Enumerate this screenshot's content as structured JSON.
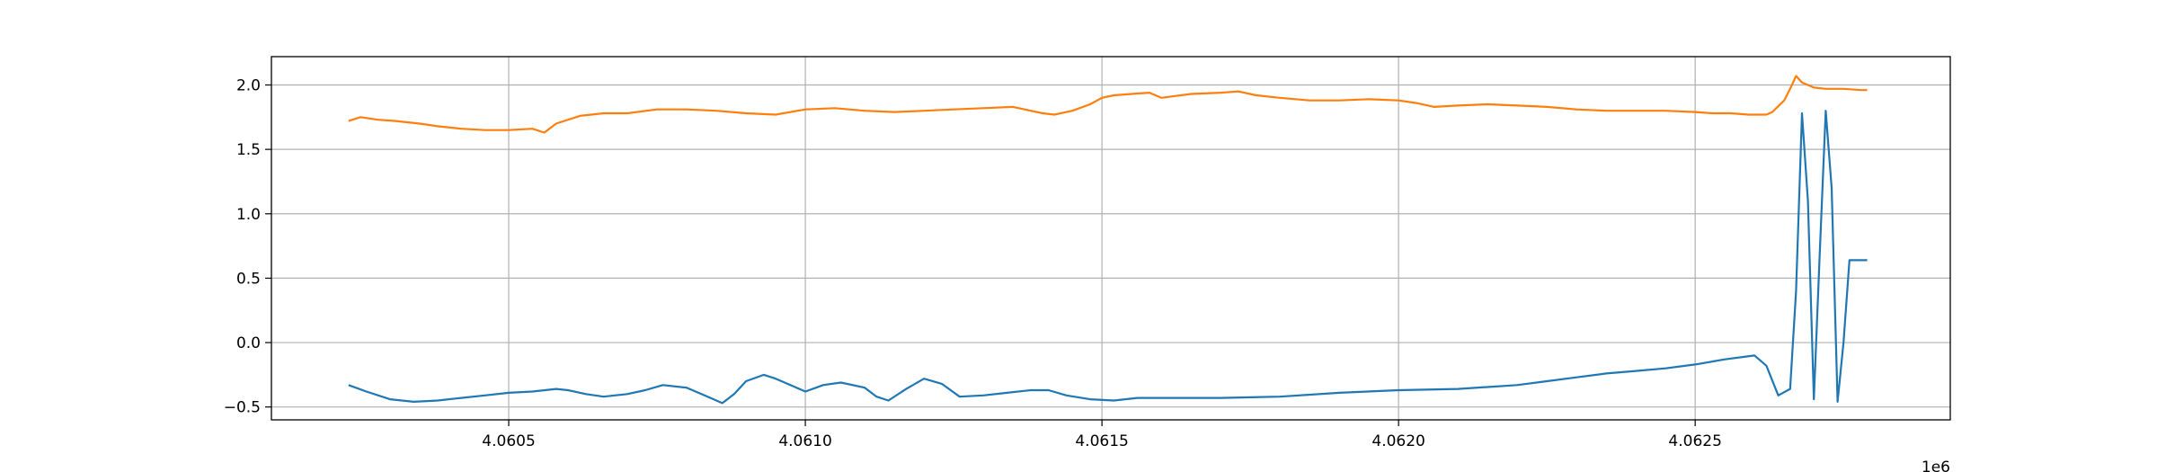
{
  "chart_data": {
    "type": "line",
    "x_offset_label": "1e6",
    "xlim": [
      4.0601,
      4.06293
    ],
    "ylim": [
      -0.6,
      2.22
    ],
    "grid": true,
    "x_ticks": [
      {
        "value": 4.0605,
        "label": "4.0605"
      },
      {
        "value": 4.061,
        "label": "4.0610"
      },
      {
        "value": 4.0615,
        "label": "4.0615"
      },
      {
        "value": 4.062,
        "label": "4.0620"
      },
      {
        "value": 4.0625,
        "label": "4.0625"
      }
    ],
    "y_ticks": [
      {
        "value": 2.0,
        "label": "2.0"
      },
      {
        "value": 1.5,
        "label": "1.5"
      },
      {
        "value": 1.0,
        "label": "1.0"
      },
      {
        "value": 0.5,
        "label": "0.5"
      },
      {
        "value": 0.0,
        "label": "0.0"
      },
      {
        "value": -0.5,
        "label": "−0.5"
      }
    ],
    "series": [
      {
        "color": "#ff7f0e",
        "x": [
          4.06023,
          4.06025,
          4.06028,
          4.06031,
          4.06035,
          4.06038,
          4.06042,
          4.06046,
          4.0605,
          4.06054,
          4.06056,
          4.06058,
          4.06062,
          4.06066,
          4.0607,
          4.06075,
          4.0608,
          4.06085,
          4.0609,
          4.06095,
          4.061,
          4.06105,
          4.0611,
          4.06115,
          4.0612,
          4.06125,
          4.0613,
          4.06135,
          4.0614,
          4.06142,
          4.06145,
          4.06148,
          4.0615,
          4.06152,
          4.06155,
          4.06158,
          4.0616,
          4.06165,
          4.0617,
          4.06173,
          4.06176,
          4.0618,
          4.06185,
          4.0619,
          4.06195,
          4.062,
          4.06203,
          4.06206,
          4.0621,
          4.06215,
          4.0622,
          4.06225,
          4.0623,
          4.06235,
          4.0624,
          4.06245,
          4.0625,
          4.06253,
          4.06256,
          4.06259,
          4.06262,
          4.06263,
          4.06265,
          4.06266,
          4.06267,
          4.06268,
          4.0627,
          4.06272,
          4.06275,
          4.06278,
          4.06279
        ],
        "y": [
          1.72,
          1.75,
          1.73,
          1.72,
          1.7,
          1.68,
          1.66,
          1.65,
          1.65,
          1.66,
          1.63,
          1.7,
          1.76,
          1.78,
          1.78,
          1.81,
          1.81,
          1.8,
          1.78,
          1.77,
          1.81,
          1.82,
          1.8,
          1.79,
          1.8,
          1.81,
          1.82,
          1.83,
          1.78,
          1.77,
          1.8,
          1.85,
          1.9,
          1.92,
          1.93,
          1.94,
          1.9,
          1.93,
          1.94,
          1.95,
          1.92,
          1.9,
          1.88,
          1.88,
          1.89,
          1.88,
          1.86,
          1.83,
          1.84,
          1.85,
          1.84,
          1.83,
          1.81,
          1.8,
          1.8,
          1.8,
          1.79,
          1.78,
          1.78,
          1.77,
          1.77,
          1.79,
          1.88,
          1.97,
          2.07,
          2.02,
          1.98,
          1.97,
          1.97,
          1.96,
          1.96
        ]
      },
      {
        "color": "#1f77b4",
        "x": [
          4.06023,
          4.06026,
          4.0603,
          4.06034,
          4.06038,
          4.06042,
          4.06046,
          4.0605,
          4.06054,
          4.06058,
          4.0606,
          4.06063,
          4.06066,
          4.0607,
          4.06073,
          4.06076,
          4.0608,
          4.06083,
          4.06086,
          4.06088,
          4.0609,
          4.06093,
          4.06095,
          4.06098,
          4.061,
          4.06103,
          4.06106,
          4.0611,
          4.06112,
          4.06114,
          4.06117,
          4.0612,
          4.06123,
          4.06126,
          4.0613,
          4.06134,
          4.06138,
          4.06141,
          4.06144,
          4.06148,
          4.06152,
          4.06156,
          4.0616,
          4.0617,
          4.0618,
          4.0619,
          4.062,
          4.0621,
          4.0622,
          4.06225,
          4.0623,
          4.06235,
          4.0624,
          4.06245,
          4.0625,
          4.06255,
          4.0626,
          4.06262,
          4.06264,
          4.06266,
          4.06267,
          4.06268,
          4.06269,
          4.0627,
          4.06271,
          4.06272,
          4.06273,
          4.06274,
          4.06275,
          4.06276,
          4.06277,
          4.06278,
          4.06279
        ],
        "y": [
          -0.33,
          -0.38,
          -0.44,
          -0.46,
          -0.45,
          -0.43,
          -0.41,
          -0.39,
          -0.38,
          -0.36,
          -0.37,
          -0.4,
          -0.42,
          -0.4,
          -0.37,
          -0.33,
          -0.35,
          -0.41,
          -0.47,
          -0.4,
          -0.3,
          -0.25,
          -0.28,
          -0.34,
          -0.38,
          -0.33,
          -0.31,
          -0.35,
          -0.42,
          -0.45,
          -0.36,
          -0.28,
          -0.32,
          -0.42,
          -0.41,
          -0.39,
          -0.37,
          -0.37,
          -0.41,
          -0.44,
          -0.45,
          -0.43,
          -0.43,
          -0.43,
          -0.42,
          -0.39,
          -0.37,
          -0.36,
          -0.33,
          -0.3,
          -0.27,
          -0.24,
          -0.22,
          -0.2,
          -0.17,
          -0.13,
          -0.1,
          -0.18,
          -0.41,
          -0.36,
          0.4,
          1.78,
          1.1,
          -0.44,
          0.7,
          1.8,
          1.2,
          -0.46,
          0.0,
          0.64,
          0.64,
          0.64,
          0.64
        ]
      }
    ]
  }
}
